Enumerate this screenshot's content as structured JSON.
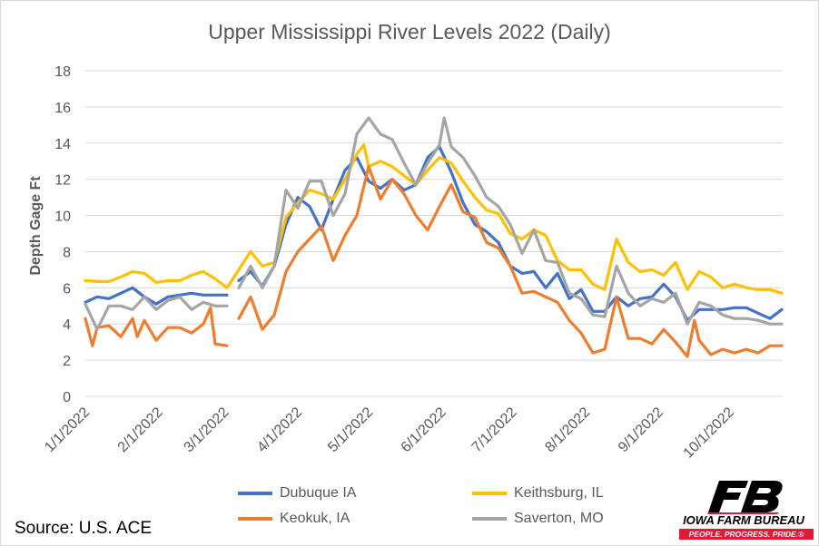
{
  "chart_data": {
    "type": "line",
    "title": "Upper Mississippi River Levels 2022 (Daily)",
    "xlabel": "",
    "ylabel": "Depth Gage Ft",
    "ylim": [
      0,
      18
    ],
    "yticks": [
      0,
      2,
      4,
      6,
      8,
      10,
      12,
      14,
      16,
      18
    ],
    "x_unit": "day of year 2022 (0 = 1/1/2022)",
    "xlim": [
      0,
      296
    ],
    "xticks": [
      {
        "label": "1/1/2022",
        "day": 0
      },
      {
        "label": "2/1/2022",
        "day": 31
      },
      {
        "label": "3/1/2022",
        "day": 59
      },
      {
        "label": "4/1/2022",
        "day": 90
      },
      {
        "label": "5/1/2022",
        "day": 120
      },
      {
        "label": "6/1/2022",
        "day": 151
      },
      {
        "label": "7/1/2022",
        "day": 181
      },
      {
        "label": "8/1/2022",
        "day": 212
      },
      {
        "label": "9/1/2022",
        "day": 243
      },
      {
        "label": "10/1/2022",
        "day": 273
      }
    ],
    "grid": true,
    "legend_position": "bottom",
    "series": [
      {
        "name": "Dubuque IA",
        "color": "#4472C4",
        "points": [
          [
            0,
            5.2
          ],
          [
            5,
            5.5
          ],
          [
            10,
            5.4
          ],
          [
            15,
            5.7
          ],
          [
            20,
            6.0
          ],
          [
            25,
            5.5
          ],
          [
            30,
            5.1
          ],
          [
            35,
            5.5
          ],
          [
            40,
            5.6
          ],
          [
            45,
            5.7
          ],
          [
            50,
            5.6
          ],
          [
            55,
            5.6
          ],
          [
            60,
            5.6
          ],
          [
            62,
            null
          ],
          [
            65,
            6.4
          ],
          [
            70,
            6.9
          ],
          [
            75,
            6.1
          ],
          [
            80,
            7.2
          ],
          [
            85,
            9.5
          ],
          [
            90,
            11.0
          ],
          [
            95,
            10.5
          ],
          [
            100,
            9.2
          ],
          [
            105,
            10.9
          ],
          [
            110,
            12.5
          ],
          [
            115,
            13.2
          ],
          [
            120,
            11.9
          ],
          [
            125,
            11.5
          ],
          [
            130,
            12.0
          ],
          [
            135,
            11.4
          ],
          [
            140,
            11.7
          ],
          [
            145,
            13.2
          ],
          [
            150,
            13.8
          ],
          [
            155,
            12.4
          ],
          [
            160,
            10.7
          ],
          [
            165,
            9.5
          ],
          [
            170,
            9.1
          ],
          [
            175,
            8.5
          ],
          [
            180,
            7.2
          ],
          [
            185,
            6.8
          ],
          [
            190,
            6.9
          ],
          [
            195,
            6.0
          ],
          [
            200,
            6.8
          ],
          [
            205,
            5.4
          ],
          [
            210,
            5.9
          ],
          [
            215,
            4.7
          ],
          [
            220,
            4.7
          ],
          [
            225,
            5.5
          ],
          [
            230,
            5.0
          ],
          [
            235,
            5.4
          ],
          [
            240,
            5.5
          ],
          [
            245,
            6.2
          ],
          [
            250,
            5.5
          ],
          [
            255,
            4.2
          ],
          [
            260,
            4.8
          ],
          [
            265,
            4.8
          ],
          [
            270,
            4.8
          ],
          [
            275,
            4.9
          ],
          [
            280,
            4.9
          ],
          [
            285,
            4.6
          ],
          [
            290,
            4.3
          ],
          [
            295,
            4.8
          ]
        ]
      },
      {
        "name": "Keithsburg, IL",
        "color": "#FFC000",
        "points": [
          [
            0,
            6.4
          ],
          [
            5,
            6.35
          ],
          [
            10,
            6.35
          ],
          [
            15,
            6.6
          ],
          [
            20,
            6.9
          ],
          [
            25,
            6.8
          ],
          [
            30,
            6.3
          ],
          [
            35,
            6.4
          ],
          [
            40,
            6.4
          ],
          [
            45,
            6.7
          ],
          [
            50,
            6.9
          ],
          [
            55,
            6.5
          ],
          [
            60,
            6.0
          ],
          [
            65,
            7.0
          ],
          [
            70,
            8.0
          ],
          [
            75,
            7.2
          ],
          [
            80,
            7.4
          ],
          [
            85,
            9.9
          ],
          [
            90,
            10.7
          ],
          [
            95,
            11.4
          ],
          [
            100,
            11.2
          ],
          [
            105,
            10.9
          ],
          [
            110,
            12.0
          ],
          [
            115,
            13.4
          ],
          [
            118,
            13.9
          ],
          [
            120,
            12.7
          ],
          [
            125,
            13.0
          ],
          [
            130,
            12.7
          ],
          [
            135,
            12.2
          ],
          [
            140,
            11.7
          ],
          [
            145,
            12.5
          ],
          [
            150,
            13.2
          ],
          [
            155,
            12.9
          ],
          [
            160,
            11.9
          ],
          [
            165,
            11.0
          ],
          [
            170,
            10.3
          ],
          [
            175,
            10.1
          ],
          [
            180,
            9.0
          ],
          [
            185,
            8.7
          ],
          [
            190,
            9.2
          ],
          [
            195,
            8.9
          ],
          [
            200,
            7.5
          ],
          [
            205,
            7.0
          ],
          [
            210,
            7.0
          ],
          [
            215,
            6.2
          ],
          [
            220,
            5.9
          ],
          [
            225,
            8.7
          ],
          [
            230,
            7.4
          ],
          [
            235,
            6.9
          ],
          [
            240,
            7.0
          ],
          [
            245,
            6.7
          ],
          [
            250,
            7.4
          ],
          [
            255,
            5.9
          ],
          [
            260,
            6.9
          ],
          [
            265,
            6.6
          ],
          [
            270,
            6.0
          ],
          [
            275,
            6.2
          ],
          [
            280,
            6.0
          ],
          [
            285,
            5.9
          ],
          [
            290,
            5.9
          ],
          [
            295,
            5.7
          ]
        ]
      },
      {
        "name": "Keokuk, IA",
        "color": "#ED7D31",
        "points": [
          [
            0,
            4.3
          ],
          [
            3,
            2.8
          ],
          [
            5,
            3.8
          ],
          [
            10,
            3.9
          ],
          [
            15,
            3.3
          ],
          [
            20,
            4.3
          ],
          [
            22,
            3.3
          ],
          [
            25,
            4.2
          ],
          [
            30,
            3.1
          ],
          [
            35,
            3.8
          ],
          [
            40,
            3.8
          ],
          [
            45,
            3.5
          ],
          [
            50,
            4.0
          ],
          [
            53,
            4.9
          ],
          [
            55,
            2.9
          ],
          [
            60,
            2.8
          ],
          [
            62,
            null
          ],
          [
            65,
            4.3
          ],
          [
            70,
            5.5
          ],
          [
            75,
            3.7
          ],
          [
            80,
            4.5
          ],
          [
            85,
            6.9
          ],
          [
            90,
            8.0
          ],
          [
            95,
            8.7
          ],
          [
            100,
            9.4
          ],
          [
            105,
            7.5
          ],
          [
            110,
            8.9
          ],
          [
            115,
            10.0
          ],
          [
            120,
            12.7
          ],
          [
            125,
            10.9
          ],
          [
            130,
            12.0
          ],
          [
            135,
            11.2
          ],
          [
            140,
            10.0
          ],
          [
            145,
            9.2
          ],
          [
            150,
            10.5
          ],
          [
            155,
            11.7
          ],
          [
            160,
            10.2
          ],
          [
            165,
            9.9
          ],
          [
            170,
            8.5
          ],
          [
            175,
            8.2
          ],
          [
            180,
            7.2
          ],
          [
            185,
            5.7
          ],
          [
            190,
            5.8
          ],
          [
            195,
            5.5
          ],
          [
            200,
            5.2
          ],
          [
            205,
            4.2
          ],
          [
            210,
            3.5
          ],
          [
            215,
            2.4
          ],
          [
            220,
            2.6
          ],
          [
            225,
            5.5
          ],
          [
            230,
            3.2
          ],
          [
            235,
            3.2
          ],
          [
            240,
            2.9
          ],
          [
            245,
            3.7
          ],
          [
            250,
            3.0
          ],
          [
            255,
            2.2
          ],
          [
            258,
            4.2
          ],
          [
            260,
            3.1
          ],
          [
            265,
            2.3
          ],
          [
            270,
            2.6
          ],
          [
            275,
            2.4
          ],
          [
            280,
            2.6
          ],
          [
            285,
            2.4
          ],
          [
            290,
            2.8
          ],
          [
            295,
            2.8
          ]
        ]
      },
      {
        "name": "Saverton, MO",
        "color": "#A5A5A5",
        "points": [
          [
            0,
            5.1
          ],
          [
            5,
            3.7
          ],
          [
            10,
            5.0
          ],
          [
            15,
            5.0
          ],
          [
            20,
            4.8
          ],
          [
            25,
            5.5
          ],
          [
            30,
            4.8
          ],
          [
            35,
            5.3
          ],
          [
            40,
            5.5
          ],
          [
            45,
            4.8
          ],
          [
            50,
            5.2
          ],
          [
            55,
            5.0
          ],
          [
            60,
            5.0
          ],
          [
            62,
            null
          ],
          [
            65,
            6.0
          ],
          [
            70,
            7.2
          ],
          [
            75,
            6.0
          ],
          [
            80,
            7.2
          ],
          [
            85,
            11.4
          ],
          [
            90,
            10.4
          ],
          [
            95,
            11.9
          ],
          [
            100,
            11.9
          ],
          [
            105,
            10.0
          ],
          [
            110,
            11.2
          ],
          [
            115,
            14.5
          ],
          [
            120,
            15.4
          ],
          [
            125,
            14.5
          ],
          [
            130,
            14.2
          ],
          [
            135,
            12.9
          ],
          [
            140,
            11.7
          ],
          [
            145,
            12.9
          ],
          [
            150,
            13.9
          ],
          [
            152,
            15.4
          ],
          [
            155,
            13.8
          ],
          [
            160,
            13.2
          ],
          [
            165,
            12.2
          ],
          [
            170,
            11.0
          ],
          [
            175,
            10.5
          ],
          [
            180,
            9.5
          ],
          [
            185,
            7.9
          ],
          [
            190,
            9.2
          ],
          [
            195,
            7.5
          ],
          [
            200,
            7.4
          ],
          [
            205,
            5.7
          ],
          [
            210,
            5.4
          ],
          [
            215,
            4.5
          ],
          [
            220,
            4.4
          ],
          [
            225,
            7.2
          ],
          [
            230,
            5.7
          ],
          [
            235,
            5.0
          ],
          [
            240,
            5.4
          ],
          [
            245,
            5.2
          ],
          [
            250,
            5.7
          ],
          [
            255,
            4.0
          ],
          [
            260,
            5.2
          ],
          [
            265,
            5.0
          ],
          [
            270,
            4.5
          ],
          [
            275,
            4.3
          ],
          [
            280,
            4.3
          ],
          [
            285,
            4.2
          ],
          [
            290,
            4.0
          ],
          [
            295,
            4.0
          ]
        ]
      }
    ]
  },
  "source": "Source: U.S. ACE",
  "logo": {
    "name": "IOWA FARM BUREAU",
    "tagline": "PEOPLE. PROGRESS. PRIDE.®"
  }
}
